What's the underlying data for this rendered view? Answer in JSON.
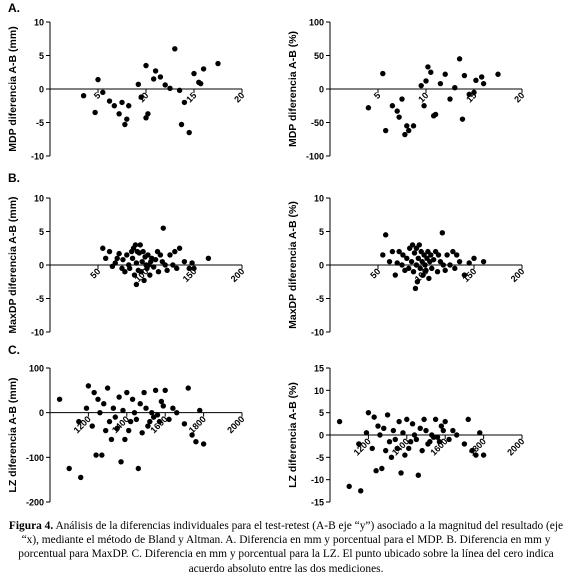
{
  "figure": {
    "caption_label": "Figura 4.",
    "caption_text": "Análisis de la diferencias individuales para el test-retest (A-B eje “y”) asociado a la magnitud del resultado (eje “x), mediante el método de Bland y Altman. A. Diferencia en mm y porcentual para el MDP. B. Diferencia en mm y porcentual para MaxDP. C. Diferencia en mm y porcentual para la LZ. El punto ubicado sobre la línea del cero indica acuerdo absoluto entre las dos mediciones."
  },
  "sections": [
    "A.",
    "B.",
    "C."
  ],
  "chart_data": [
    {
      "id": "A-mm",
      "type": "scatter",
      "ylabel": "MDP diferencia A-B (mm)",
      "xlim": [
        0,
        20
      ],
      "ylim": [
        -10,
        10
      ],
      "xticks": [
        5,
        10,
        15,
        20
      ],
      "yticks": [
        -10,
        -5,
        0,
        5,
        10
      ],
      "x": [
        3.5,
        4.7,
        5.0,
        5.5,
        6.2,
        6.7,
        7.2,
        7.5,
        7.8,
        8.0,
        8.2,
        9.2,
        9.5,
        10.0,
        10.0,
        10.2,
        10.8,
        11.0,
        11.5,
        12.0,
        12.5,
        13.0,
        13.5,
        13.7,
        14.0,
        14.5,
        15.0,
        15.5,
        15.7,
        16.0,
        17.5
      ],
      "y": [
        -1.0,
        -3.5,
        1.4,
        -0.5,
        -1.8,
        -2.5,
        -3.7,
        -2.0,
        -5.3,
        -4.5,
        -2.5,
        0.7,
        -1.2,
        3.5,
        -4.3,
        -3.7,
        1.5,
        2.7,
        1.8,
        0.6,
        0.1,
        6.0,
        -0.2,
        -5.3,
        -2.0,
        -6.5,
        2.3,
        1.0,
        0.8,
        3.0,
        3.8
      ]
    },
    {
      "id": "A-pct",
      "type": "scatter",
      "ylabel": "MDP diferencia A-B (%)",
      "xlim": [
        0,
        20
      ],
      "ylim": [
        -100,
        100
      ],
      "xticks": [
        5,
        10,
        15,
        20
      ],
      "yticks": [
        -100,
        -50,
        0,
        50,
        100
      ],
      "x": [
        4.0,
        5.5,
        5.8,
        6.5,
        7.0,
        7.2,
        7.5,
        8.0,
        8.2,
        9.5,
        9.8,
        10.0,
        10.2,
        10.5,
        10.8,
        11.0,
        11.5,
        12.0,
        12.5,
        13.0,
        13.5,
        13.8,
        14.0,
        14.5,
        15.0,
        15.2,
        15.8,
        16.0,
        17.5,
        8.7,
        7.8
      ],
      "y": [
        -28,
        23,
        -62,
        -25,
        -33,
        -42,
        -15,
        -55,
        -62,
        5,
        -25,
        12,
        33,
        25,
        -40,
        -38,
        8,
        22,
        -15,
        2,
        45,
        -45,
        20,
        -8,
        -5,
        13,
        18,
        8,
        22,
        -55,
        -68
      ]
    },
    {
      "id": "B-mm",
      "type": "scatter",
      "ylabel": "MaxDP diferencia A-B (mm)",
      "xlim": [
        0,
        200
      ],
      "ylim": [
        -10,
        10
      ],
      "xticks": [
        50,
        100,
        150,
        200
      ],
      "yticks": [
        -10,
        -5,
        0,
        5,
        10
      ],
      "x": [
        55,
        58,
        62,
        65,
        68,
        70,
        72,
        75,
        76,
        78,
        80,
        82,
        83,
        85,
        86,
        87,
        88,
        89,
        90,
        90,
        91,
        92,
        93,
        94,
        95,
        96,
        97,
        98,
        99,
        100,
        101,
        102,
        103,
        104,
        105,
        106,
        108,
        110,
        112,
        113,
        115,
        117,
        118,
        120,
        122,
        125,
        128,
        130,
        132,
        135,
        140,
        145,
        148,
        150,
        165
      ],
      "y": [
        2.5,
        1.0,
        2.0,
        -0.2,
        0.3,
        1.0,
        1.7,
        -0.5,
        0.8,
        -1.0,
        1.5,
        0.0,
        -0.5,
        2.0,
        1.0,
        2.5,
        -1.5,
        3.0,
        0.3,
        -2.9,
        2.0,
        -0.8,
        1.8,
        3.0,
        -1.0,
        0.5,
        2.0,
        -2.3,
        1.2,
        0.0,
        -0.5,
        1.5,
        0.0,
        -1.5,
        0.5,
        1.0,
        -0.3,
        0.8,
        2.0,
        -1.0,
        1.5,
        0.5,
        5.5,
        0.0,
        -0.8,
        1.5,
        0.0,
        2.0,
        -0.5,
        2.5,
        0.5,
        -0.5,
        0.3,
        -0.5,
        1.0
      ]
    },
    {
      "id": "B-pct",
      "type": "scatter",
      "ylabel": "MaxDP diferencia A-B (%)",
      "xlim": [
        0,
        200
      ],
      "ylim": [
        -10,
        10
      ],
      "xticks": [
        50,
        100,
        150,
        200
      ],
      "yticks": [
        -10,
        -5,
        0,
        5,
        10
      ],
      "x": [
        55,
        58,
        62,
        65,
        68,
        70,
        72,
        75,
        76,
        78,
        80,
        82,
        83,
        85,
        86,
        87,
        88,
        89,
        90,
        90,
        91,
        92,
        93,
        94,
        95,
        96,
        97,
        98,
        99,
        100,
        101,
        102,
        103,
        104,
        105,
        106,
        108,
        110,
        112,
        113,
        115,
        117,
        118,
        120,
        122,
        125,
        128,
        130,
        132,
        135,
        140,
        145,
        150,
        160
      ],
      "y": [
        1.5,
        4.5,
        0.5,
        2.0,
        -1.5,
        0.3,
        2.0,
        0.0,
        1.5,
        -0.8,
        1.0,
        -0.5,
        2.5,
        0.5,
        3.0,
        -1.0,
        1.8,
        -3.5,
        2.5,
        0.0,
        -2.5,
        1.0,
        3.0,
        -0.5,
        2.0,
        0.5,
        -1.5,
        1.5,
        0.0,
        -0.8,
        1.0,
        2.0,
        -2.0,
        0.5,
        1.5,
        -0.5,
        0.8,
        2.0,
        -1.0,
        1.5,
        0.5,
        4.8,
        0.0,
        -0.8,
        1.5,
        0.0,
        2.0,
        -0.5,
        1.5,
        0.5,
        -1.5,
        0.3,
        1.0,
        0.5
      ]
    },
    {
      "id": "C-mm",
      "type": "scatter",
      "ylabel": "LZ diferencia A-B (mm)",
      "xlim": [
        1000,
        2000
      ],
      "ylim": [
        -200,
        100
      ],
      "xticks": [
        1200,
        1400,
        1600,
        1800,
        2000
      ],
      "yticks": [
        -200,
        -100,
        0,
        100
      ],
      "x": [
        1050,
        1100,
        1150,
        1160,
        1190,
        1200,
        1220,
        1230,
        1240,
        1250,
        1260,
        1270,
        1280,
        1290,
        1300,
        1310,
        1320,
        1330,
        1340,
        1350,
        1360,
        1370,
        1380,
        1390,
        1400,
        1410,
        1420,
        1430,
        1440,
        1450,
        1460,
        1470,
        1480,
        1490,
        1500,
        1510,
        1520,
        1530,
        1540,
        1550,
        1560,
        1570,
        1580,
        1590,
        1600,
        1620,
        1640,
        1660,
        1700,
        1720,
        1740,
        1760,
        1780,
        1800
      ],
      "y": [
        30,
        -125,
        -20,
        -145,
        10,
        60,
        -30,
        45,
        -95,
        30,
        0,
        -95,
        20,
        -40,
        55,
        -20,
        -60,
        10,
        -10,
        -35,
        35,
        -110,
        5,
        -60,
        45,
        -40,
        -20,
        30,
        0,
        -15,
        -125,
        20,
        -45,
        45,
        10,
        -30,
        -20,
        0,
        -10,
        50,
        -5,
        -20,
        25,
        15,
        50,
        -15,
        10,
        0,
        -25,
        55,
        -50,
        -65,
        5,
        -70
      ]
    },
    {
      "id": "C-pct",
      "type": "scatter",
      "ylabel": "LZ diferencia A-B (%)",
      "xlim": [
        1000,
        2000
      ],
      "ylim": [
        -15,
        15
      ],
      "xticks": [
        1200,
        1400,
        1600,
        1800,
        2000
      ],
      "yticks": [
        -15,
        -10,
        -5,
        0,
        5,
        10,
        15
      ],
      "x": [
        1050,
        1100,
        1150,
        1160,
        1190,
        1200,
        1220,
        1230,
        1240,
        1250,
        1260,
        1270,
        1280,
        1290,
        1300,
        1310,
        1320,
        1330,
        1340,
        1350,
        1360,
        1370,
        1380,
        1390,
        1400,
        1410,
        1420,
        1430,
        1440,
        1450,
        1460,
        1470,
        1480,
        1490,
        1500,
        1510,
        1520,
        1530,
        1540,
        1550,
        1560,
        1570,
        1580,
        1590,
        1600,
        1620,
        1640,
        1660,
        1700,
        1720,
        1740,
        1760,
        1780,
        1800
      ],
      "y": [
        3,
        -11.5,
        -2,
        -12.5,
        0.5,
        5,
        -3,
        4,
        -8,
        2,
        0,
        -7.5,
        1.5,
        -3.5,
        4.5,
        -1.5,
        -5,
        1,
        -1,
        -3,
        3,
        -8.5,
        0.5,
        -4.5,
        3.5,
        -3,
        -1.5,
        2.5,
        0,
        -1,
        -9,
        1.5,
        -3.5,
        3.5,
        1,
        -2,
        -1.5,
        0,
        -0.5,
        3.5,
        -0.5,
        -1.5,
        2,
        1,
        3,
        -1,
        1,
        0,
        -2,
        3.5,
        -3.5,
        -4.5,
        0.5,
        -4.5
      ]
    }
  ]
}
